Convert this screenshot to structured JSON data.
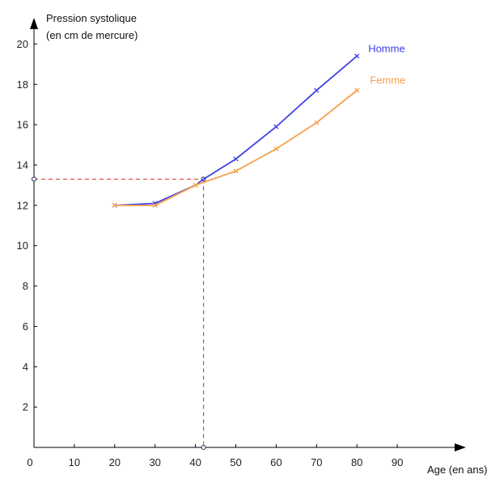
{
  "chart_data": {
    "type": "line",
    "title": "",
    "ylabel": [
      "Pression systolique",
      "(en cm de mercure)"
    ],
    "xlabel": "Age (en ans)",
    "origin_label": "0",
    "xlim": [
      0,
      107
    ],
    "ylim": [
      0,
      21.3
    ],
    "xticks": [
      10,
      20,
      30,
      40,
      50,
      60,
      70,
      80,
      90
    ],
    "xtick_labels": [
      "10",
      "20",
      "30",
      "40",
      "50",
      "60",
      "70",
      "80",
      "90"
    ],
    "yticks": [
      2,
      4,
      6,
      8,
      10,
      12,
      14,
      16,
      18,
      20
    ],
    "ytick_labels": [
      "2",
      "4",
      "6",
      "8",
      "10",
      "12",
      "14",
      "16",
      "18",
      "20"
    ],
    "grid": false,
    "legend": "inline labels at line ends",
    "series": [
      {
        "name": "Homme",
        "color": "#4040e8",
        "x": [
          20,
          30,
          40,
          42,
          50,
          60,
          70,
          80
        ],
        "y": [
          12,
          12.1,
          13,
          13.3,
          14.3,
          15.9,
          17.7,
          19.4
        ],
        "markers": [
          true,
          true,
          false,
          false,
          true,
          true,
          true,
          true
        ]
      },
      {
        "name": "Femme",
        "color": "#f5a04a",
        "x": [
          20,
          30,
          40,
          50,
          60,
          70,
          80
        ],
        "y": [
          12,
          12,
          13,
          13.7,
          14.8,
          16.1,
          17.7
        ],
        "markers": [
          true,
          true,
          true,
          true,
          true,
          true,
          true
        ]
      }
    ],
    "annotation": {
      "color": "#e84040",
      "x": 42,
      "y": 13.3
    }
  }
}
